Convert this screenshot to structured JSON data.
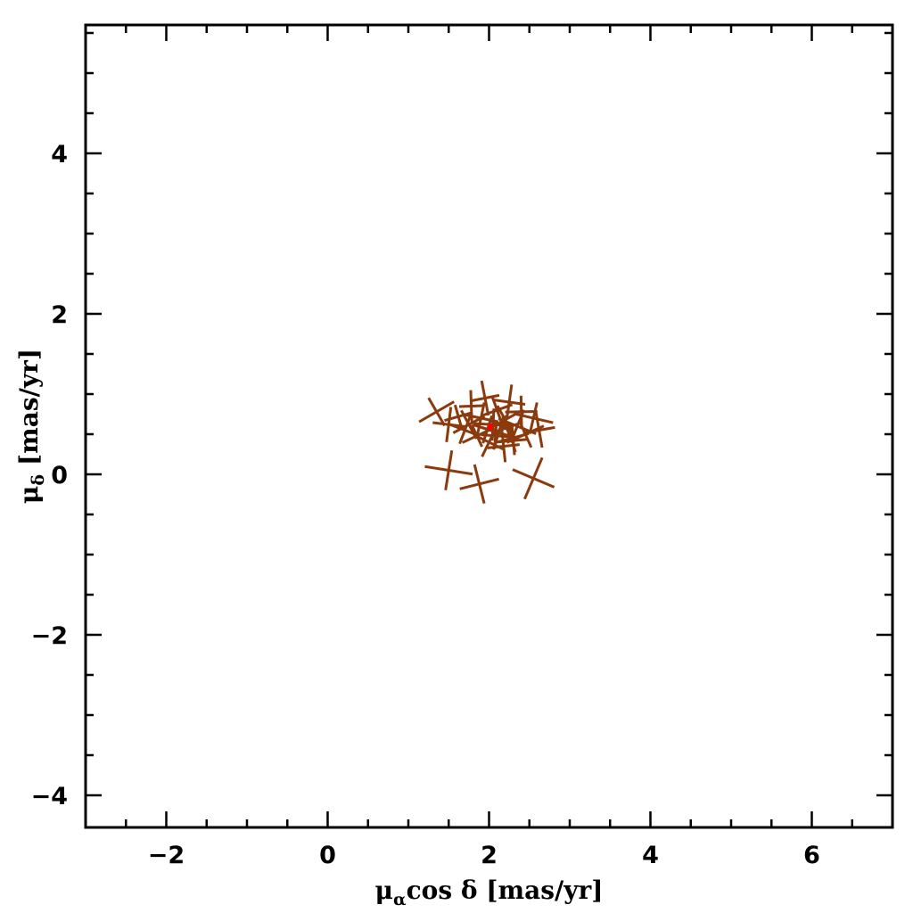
{
  "chart_data": {
    "type": "scatter",
    "title": "",
    "xlabel": {
      "mu": "μ",
      "sub": "α",
      "rest": "cos δ [mas/yr]"
    },
    "ylabel": {
      "mu": "μ",
      "sub": "δ",
      "rest": " [mas/yr]"
    },
    "xlim": [
      -3,
      7
    ],
    "ylim": [
      -4.4,
      5.6
    ],
    "x_major_ticks": [
      -2,
      0,
      2,
      4,
      6
    ],
    "y_major_ticks": [
      -4,
      -2,
      0,
      2,
      4
    ],
    "x_minor_step": 0.5,
    "y_minor_step": 0.5,
    "x_tick_labels": [
      "−2",
      "0",
      "2",
      "4",
      "6"
    ],
    "y_tick_labels": [
      "−4",
      "−2",
      "0",
      "2",
      "4"
    ],
    "grid": false,
    "legend": "none",
    "colors": {
      "points": "#8B3A0E",
      "mean": "#ff0000",
      "axes": "#000000"
    },
    "mean_point": {
      "x": 2.02,
      "y": 0.59
    },
    "series": [
      {
        "points": [
          {
            "x": 1.35,
            "y": 0.78,
            "ex": 0.25,
            "ey": 0.2
          },
          {
            "x": 1.5,
            "y": 0.62,
            "ex": 0.2,
            "ey": 0.22
          },
          {
            "x": 1.62,
            "y": 0.72,
            "ex": 0.18,
            "ey": 0.15
          },
          {
            "x": 1.7,
            "y": 0.55,
            "ex": 0.2,
            "ey": 0.18
          },
          {
            "x": 1.78,
            "y": 0.85,
            "ex": 0.15,
            "ey": 0.2
          },
          {
            "x": 1.85,
            "y": 0.48,
            "ex": 0.2,
            "ey": 0.15
          },
          {
            "x": 1.9,
            "y": 0.7,
            "ex": 0.22,
            "ey": 0.2
          },
          {
            "x": 1.95,
            "y": 0.95,
            "ex": 0.18,
            "ey": 0.22
          },
          {
            "x": 2.0,
            "y": 0.4,
            "ex": 0.2,
            "ey": 0.2
          },
          {
            "x": 2.05,
            "y": 0.62,
            "ex": 0.25,
            "ey": 0.2
          },
          {
            "x": 2.1,
            "y": 0.8,
            "ex": 0.2,
            "ey": 0.18
          },
          {
            "x": 2.12,
            "y": 0.52,
            "ex": 0.22,
            "ey": 0.22
          },
          {
            "x": 2.18,
            "y": 0.35,
            "ex": 0.2,
            "ey": 0.2
          },
          {
            "x": 2.2,
            "y": 0.68,
            "ex": 0.24,
            "ey": 0.2
          },
          {
            "x": 2.25,
            "y": 0.9,
            "ex": 0.2,
            "ey": 0.22
          },
          {
            "x": 2.28,
            "y": 0.45,
            "ex": 0.22,
            "ey": 0.18
          },
          {
            "x": 2.35,
            "y": 0.6,
            "ex": 0.25,
            "ey": 0.22
          },
          {
            "x": 2.4,
            "y": 0.78,
            "ex": 0.2,
            "ey": 0.2
          },
          {
            "x": 2.45,
            "y": 0.5,
            "ex": 0.25,
            "ey": 0.18
          },
          {
            "x": 2.55,
            "y": 0.7,
            "ex": 0.25,
            "ey": 0.2
          },
          {
            "x": 2.62,
            "y": 0.55,
            "ex": 0.2,
            "ey": 0.22
          },
          {
            "x": 2.15,
            "y": 0.6,
            "ex": 0.15,
            "ey": 0.15
          },
          {
            "x": 2.08,
            "y": 0.48,
            "ex": 0.18,
            "ey": 0.16
          },
          {
            "x": 2.22,
            "y": 0.58,
            "ex": 0.16,
            "ey": 0.16
          },
          {
            "x": 1.98,
            "y": 0.56,
            "ex": 0.18,
            "ey": 0.18
          },
          {
            "x": 2.3,
            "y": 0.42,
            "ex": 0.18,
            "ey": 0.18
          },
          {
            "x": 1.75,
            "y": 0.62,
            "ex": 0.22,
            "ey": 0.2
          },
          {
            "x": 1.5,
            "y": 0.05,
            "ex": 0.3,
            "ey": 0.25
          },
          {
            "x": 1.88,
            "y": -0.12,
            "ex": 0.25,
            "ey": 0.25
          },
          {
            "x": 2.55,
            "y": -0.05,
            "ex": 0.28,
            "ey": 0.28
          }
        ]
      }
    ]
  }
}
